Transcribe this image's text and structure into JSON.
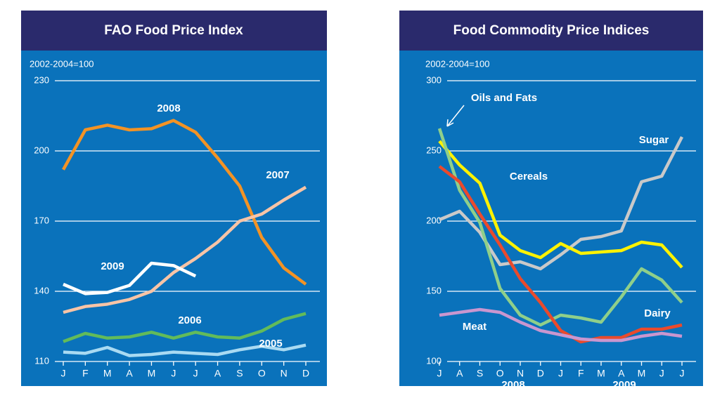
{
  "chart_data": [
    {
      "type": "line",
      "title": "FAO Food Price Index",
      "y_label": "2002-2004=100",
      "categories": [
        "J",
        "F",
        "M",
        "A",
        "M",
        "J",
        "J",
        "A",
        "S",
        "O",
        "N",
        "D"
      ],
      "ylim": [
        110,
        230
      ],
      "yticks": [
        110,
        140,
        170,
        200,
        230
      ],
      "grid": true,
      "series": [
        {
          "name": "2008",
          "color": "#f39325",
          "values": [
            192,
            209,
            211,
            209,
            209.5,
            213,
            208,
            197,
            185,
            163,
            150,
            143
          ]
        },
        {
          "name": "2007",
          "color": "#f8c4a6",
          "values": [
            131,
            133.5,
            134.5,
            136.5,
            140,
            148,
            154,
            161,
            170,
            173,
            179,
            184.5
          ]
        },
        {
          "name": "2009",
          "color": "#ffffff",
          "values": [
            143,
            139,
            139.5,
            142.5,
            152,
            151,
            146.5,
            null,
            null,
            null,
            null,
            null
          ]
        },
        {
          "name": "2006",
          "color": "#62bb5a",
          "values": [
            118.5,
            122,
            120,
            120.5,
            122.5,
            120,
            122.5,
            120.5,
            120,
            123,
            128,
            130.5
          ]
        },
        {
          "name": "2005",
          "color": "#a9daf2",
          "values": [
            114,
            113.5,
            116,
            112.5,
            113,
            114,
            113.5,
            113,
            115,
            116.5,
            115,
            117
          ]
        }
      ]
    },
    {
      "type": "line",
      "title": "Food Commodity Price Indices",
      "y_label": "2002-2004=100",
      "categories": [
        "J",
        "A",
        "S",
        "O",
        "N",
        "D",
        "J",
        "F",
        "M",
        "A",
        "M",
        "J",
        "J"
      ],
      "year_labels": [
        "2008",
        "2009"
      ],
      "ylim": [
        100,
        300
      ],
      "yticks": [
        100,
        150,
        200,
        250,
        300
      ],
      "grid": true,
      "series": [
        {
          "name": "Sugar",
          "color": "#c9c9c9",
          "values": [
            201,
            207,
            192,
            169,
            171,
            166,
            176,
            187,
            189,
            193,
            228,
            232,
            260
          ]
        },
        {
          "name": "Cereals",
          "color": "#fff200",
          "values": [
            257,
            240,
            227,
            190,
            179,
            174,
            184,
            177,
            178,
            179,
            185,
            183,
            167
          ]
        },
        {
          "name": "Oils and Fats",
          "color": "#8fcf8a",
          "values": [
            266,
            222,
            199,
            152,
            133,
            126,
            133,
            131,
            128,
            146,
            166,
            158,
            142
          ]
        },
        {
          "name": "Dairy",
          "color": "#ea4a2c",
          "values": [
            239,
            228,
            205,
            183,
            159,
            142,
            122,
            114,
            117,
            117,
            123,
            123,
            126
          ]
        },
        {
          "name": "Meat",
          "color": "#c996cf",
          "values": [
            133,
            135,
            137,
            135,
            128,
            122,
            119,
            116,
            115,
            115,
            118,
            120,
            118
          ]
        }
      ]
    }
  ]
}
